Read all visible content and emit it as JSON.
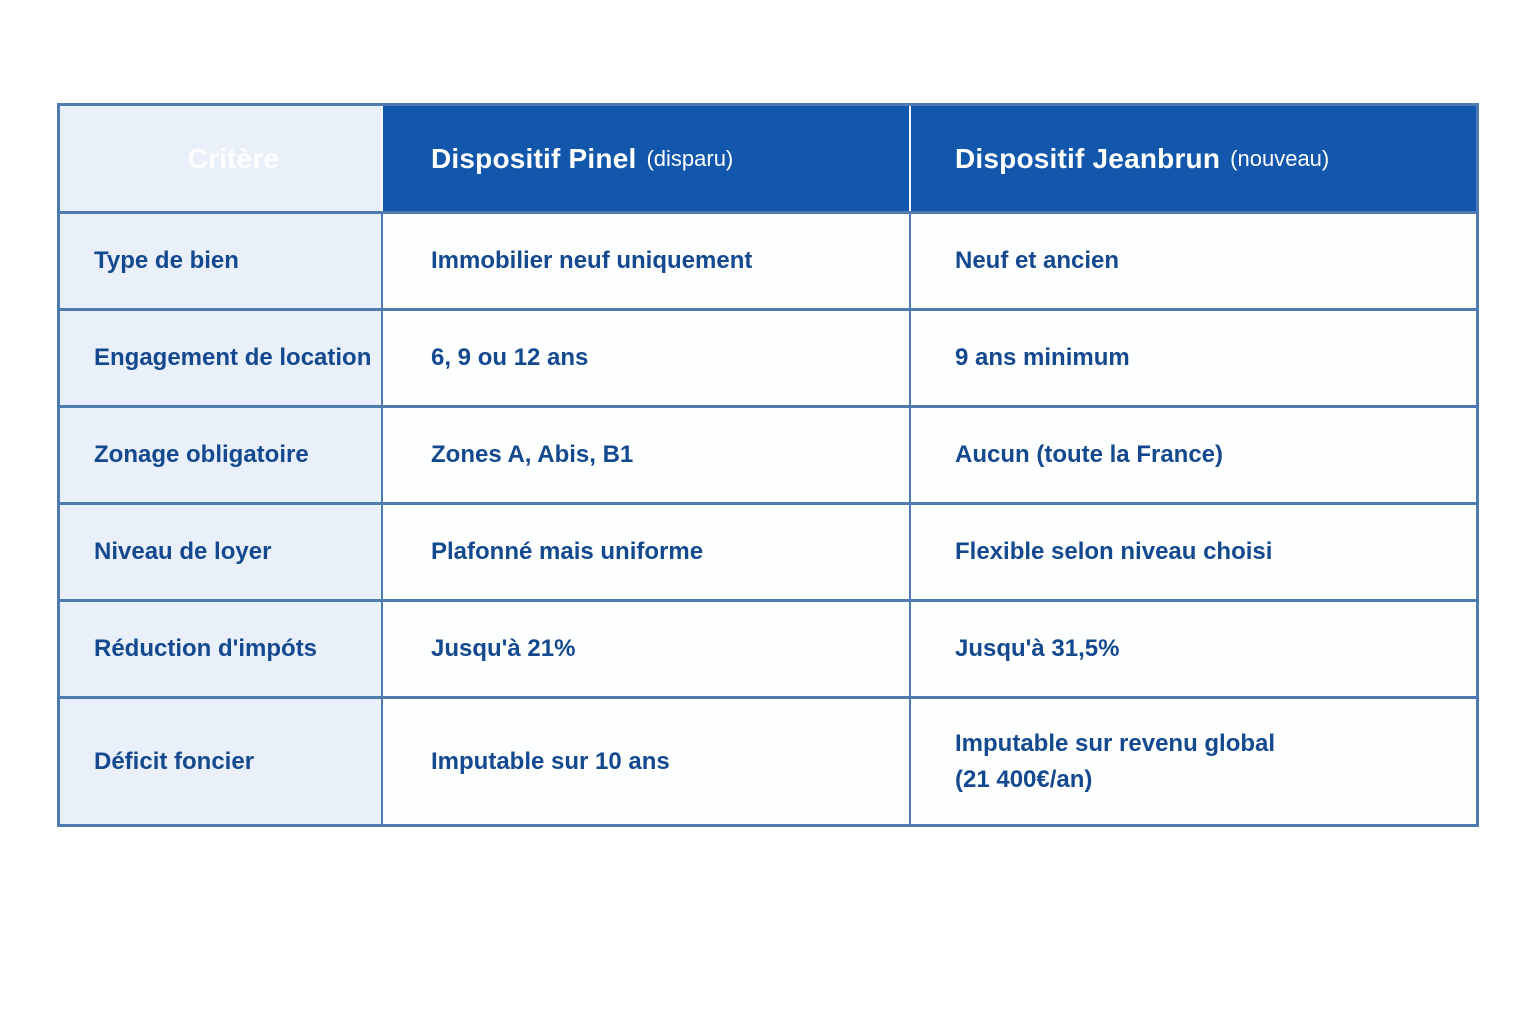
{
  "chart_data": {
    "type": "table",
    "title": "",
    "columns": [
      "Critère",
      "Dispositif Pinel (disparu)",
      "Dispositif Jeanbrun (nouveau)"
    ],
    "rows": [
      [
        "Type de bien",
        "Immobilier neuf uniquement",
        "Neuf et ancien"
      ],
      [
        "Engagement de location",
        "6, 9 ou 12 ans",
        "9 ans minimum"
      ],
      [
        "Zonage obligatoire",
        "Zones A, Abis, B1",
        "Aucun (toute la France)"
      ],
      [
        "Niveau de loyer",
        "Plafonné mais uniforme",
        "Flexible selon niveau choisi"
      ],
      [
        "Réduction d'impóts",
        "Jusqu'à 21%",
        "Jusqu'à 31,5%"
      ],
      [
        "Déficit foncier",
        "Imputable sur 10 ans",
        "Imputable sur revenu global (21 400€/an)"
      ]
    ]
  },
  "table": {
    "header": {
      "col1": "Critère",
      "col2_main": "Dispositif Pinel",
      "col2_note": "(disparu)",
      "col3_main": "Dispositif Jeanbrun",
      "col3_note": "(nouveau)"
    },
    "rows": [
      {
        "critere": "Type de bien",
        "pinel": "Immobilier neuf uniquement",
        "jeanbrun": "Neuf et ancien"
      },
      {
        "critere": "Engagement de location",
        "pinel": "6, 9 ou 12 ans",
        "jeanbrun": "9 ans minimum"
      },
      {
        "critere": "Zonage obligatoire",
        "pinel": "Zones A, Abis, B1",
        "jeanbrun": "Aucun (toute la France)"
      },
      {
        "critere": "Niveau de loyer",
        "pinel": "Plafonné mais uniforme",
        "jeanbrun": "Flexible selon niveau choisi"
      },
      {
        "critere": "Réduction d'impóts",
        "pinel": "Jusqu'à 21%",
        "jeanbrun": "Jusqu'à 31,5%"
      },
      {
        "critere": "Déficit foncier",
        "pinel": "Imputable sur 10 ans",
        "jeanbrun": "Imputable sur revenu global\n(21 400€/an)"
      }
    ],
    "colors": {
      "header_bg": "#1257ab",
      "header_text": "#ffffff",
      "label_column_bg": "#e9f0f9",
      "body_text": "#14498f",
      "border": "#4f7cb0"
    }
  }
}
